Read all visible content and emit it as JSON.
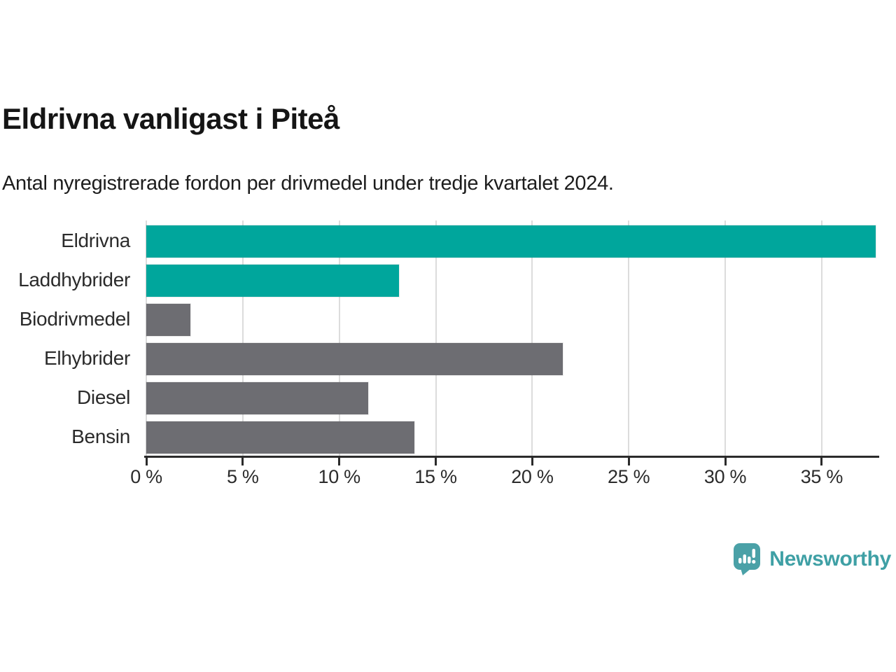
{
  "header": {
    "title": "Eldrivna vanligast i Piteå",
    "subtitle": "Antal nyregistrerade fordon per drivmedel under tredje kvartalet 2024."
  },
  "chart_data": {
    "type": "bar",
    "orientation": "horizontal",
    "title": "Eldrivna vanligast i Piteå",
    "subtitle": "Antal nyregistrerade fordon per drivmedel under tredje kvartalet 2024.",
    "categories": [
      "Eldrivna",
      "Laddhybrider",
      "Biodrivmedel",
      "Elhybrider",
      "Diesel",
      "Bensin"
    ],
    "values": [
      37.8,
      13.1,
      2.3,
      21.6,
      11.5,
      13.9
    ],
    "unit": "%",
    "xlabel": "",
    "ylabel": "",
    "xlim": [
      0,
      37.87
    ],
    "x_ticks": [
      0,
      5,
      10,
      15,
      20,
      25,
      30,
      35
    ],
    "x_tick_labels": [
      "0 %",
      "5 %",
      "10 %",
      "15 %",
      "20 %",
      "25 %",
      "30 %",
      "35 %"
    ],
    "grid": true,
    "legend": false,
    "colors": {
      "highlight": "#00a69c",
      "default": "#6d6d72",
      "gridline": "#dcdcdc",
      "axis": "#2b2b2b"
    },
    "bar_colors": [
      "#00a69c",
      "#00a69c",
      "#6d6d72",
      "#6d6d72",
      "#6d6d72",
      "#6d6d72"
    ]
  },
  "footer": {
    "brand": "Newsworthy",
    "brand_color": "#3fa0a5",
    "logo_icon": "bar-chart-speech-bubble-icon",
    "logo_icon_color": "#4aa1a7"
  }
}
